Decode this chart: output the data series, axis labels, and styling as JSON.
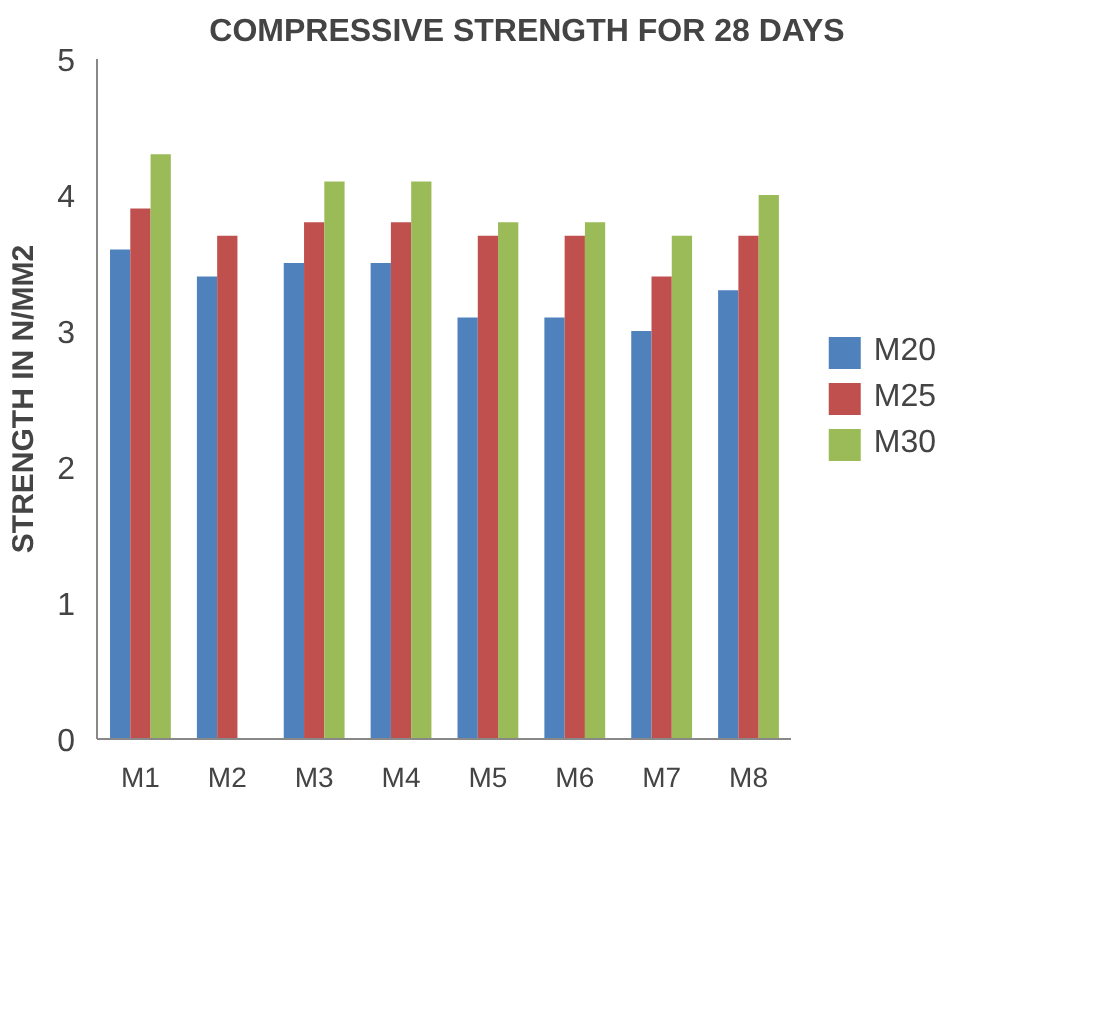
{
  "chart_data": {
    "type": "bar",
    "title": "COMPRESSIVE STRENGTH FOR 28 DAYS",
    "ylabel": "STRENGTH IN N/MM2",
    "categories": [
      "M1",
      "M2",
      "M3",
      "M4",
      "M5",
      "M6",
      "M7",
      "M8"
    ],
    "series": [
      {
        "name": "M20",
        "color": "#4f81bd",
        "values": [
          3.6,
          3.4,
          3.5,
          3.5,
          3.1,
          3.1,
          3.0,
          3.3
        ]
      },
      {
        "name": "M25",
        "color": "#c0504d",
        "values": [
          3.9,
          3.7,
          3.8,
          3.8,
          3.7,
          3.7,
          3.4,
          3.7
        ]
      },
      {
        "name": "M30",
        "color": "#9bbb59",
        "values": [
          4.3,
          null,
          4.1,
          4.1,
          3.8,
          3.8,
          3.7,
          4.0
        ]
      }
    ],
    "ylim": [
      0,
      5
    ],
    "yticks": [
      0,
      1,
      2,
      3,
      4,
      5
    ],
    "grid": false,
    "legend": "right"
  }
}
